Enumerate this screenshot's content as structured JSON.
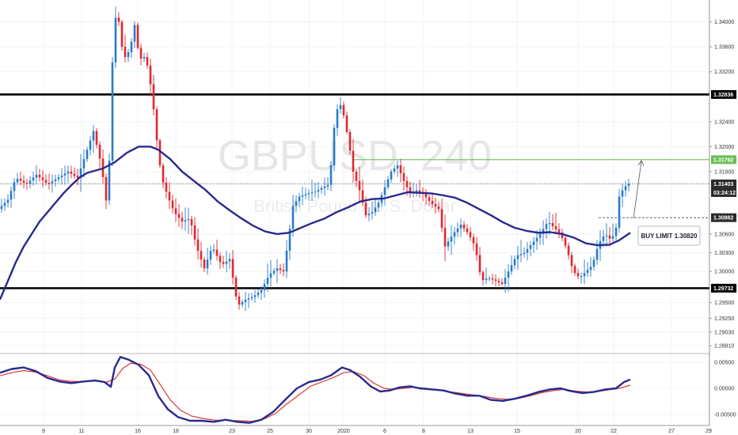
{
  "chart_data": {
    "type": "candlestick",
    "symbol": "GBPUSD",
    "interval": "240",
    "description": "British Pound / U.S. Dollar",
    "x_ticks": [
      "9",
      "11",
      "16",
      "18",
      "23",
      "25",
      "30",
      "2020",
      "6",
      "8",
      "13",
      "15",
      "20",
      "22",
      "27",
      "29"
    ],
    "y_ticks": [
      "1.34000",
      "1.33600",
      "1.33200",
      "1.32400",
      "1.32000",
      "1.31600",
      "1.30600",
      "1.30300",
      "1.30000",
      "1.29500",
      "1.29250",
      "1.29030",
      "1.28810"
    ],
    "y_range": [
      1.2871,
      1.3435
    ],
    "price_levels": [
      {
        "value": 1.32836,
        "label": "1.32836",
        "color": "#000000",
        "style": "solid"
      },
      {
        "value": 1.29732,
        "label": "1.29732",
        "color": "#000000",
        "style": "solid"
      },
      {
        "value": 1.31792,
        "label": "1.31792",
        "color": "#6cbf5a",
        "style": "solid"
      },
      {
        "value": 1.31403,
        "label": "1.31403",
        "color": "#555555",
        "style": "dotted"
      },
      {
        "value": 1.30862,
        "label": "1.30862",
        "color": "#555555",
        "style": "dashed"
      }
    ],
    "countdown": "03:24:12",
    "annotation": "BUY LIMIT 1.30820",
    "macd_ticks": [
      "0.00500",
      "0.00000",
      "-0.00500"
    ],
    "macd_range": [
      -0.0068,
      0.0062
    ],
    "ma_line": [
      [
        0,
        1.2955
      ],
      [
        10,
        1.2985
      ],
      [
        20,
        1.3015
      ],
      [
        30,
        1.304
      ],
      [
        40,
        1.306
      ],
      [
        50,
        1.308
      ],
      [
        60,
        1.3095
      ],
      [
        70,
        1.311
      ],
      [
        80,
        1.3125
      ],
      [
        90,
        1.3138
      ],
      [
        100,
        1.315
      ],
      [
        110,
        1.3158
      ],
      [
        130,
        1.3165
      ],
      [
        145,
        1.3175
      ],
      [
        160,
        1.319
      ],
      [
        175,
        1.32
      ],
      [
        190,
        1.32
      ],
      [
        200,
        1.3195
      ],
      [
        215,
        1.318
      ],
      [
        230,
        1.316
      ],
      [
        245,
        1.3145
      ],
      [
        260,
        1.313
      ],
      [
        275,
        1.3112
      ],
      [
        290,
        1.3098
      ],
      [
        305,
        1.3085
      ],
      [
        320,
        1.3073
      ],
      [
        335,
        1.3064
      ],
      [
        350,
        1.306
      ],
      [
        365,
        1.3062
      ],
      [
        380,
        1.307
      ],
      [
        395,
        1.3078
      ],
      [
        410,
        1.3085
      ],
      [
        425,
        1.3095
      ],
      [
        440,
        1.3103
      ],
      [
        455,
        1.3112
      ],
      [
        470,
        1.3116
      ],
      [
        485,
        1.3117
      ],
      [
        500,
        1.3122
      ],
      [
        515,
        1.3127
      ],
      [
        530,
        1.3126
      ],
      [
        545,
        1.3125
      ],
      [
        560,
        1.3122
      ],
      [
        575,
        1.3118
      ],
      [
        590,
        1.311
      ],
      [
        605,
        1.31
      ],
      [
        620,
        1.309
      ],
      [
        635,
        1.3079
      ],
      [
        650,
        1.307
      ],
      [
        665,
        1.3065
      ],
      [
        680,
        1.3062
      ],
      [
        695,
        1.3063
      ],
      [
        710,
        1.306
      ],
      [
        725,
        1.3054
      ],
      [
        740,
        1.3045
      ],
      [
        755,
        1.3042
      ],
      [
        770,
        1.3043
      ],
      [
        782,
        1.305
      ],
      [
        796,
        1.3062
      ]
    ],
    "macd_line": [
      [
        0,
        0.003
      ],
      [
        15,
        0.0037
      ],
      [
        30,
        0.004
      ],
      [
        45,
        0.0033
      ],
      [
        60,
        0.002
      ],
      [
        75,
        0.0013
      ],
      [
        90,
        0.001
      ],
      [
        105,
        0.0013
      ],
      [
        120,
        0.0015
      ],
      [
        132,
        0.0012
      ],
      [
        140,
        0.0003
      ],
      [
        145,
        0.004
      ],
      [
        152,
        0.006
      ],
      [
        162,
        0.0055
      ],
      [
        175,
        0.0045
      ],
      [
        188,
        0.0025
      ],
      [
        200,
        -0.0015
      ],
      [
        212,
        -0.004
      ],
      [
        225,
        -0.0055
      ],
      [
        240,
        -0.0062
      ],
      [
        255,
        -0.0062
      ],
      [
        270,
        -0.0064
      ],
      [
        285,
        -0.006
      ],
      [
        300,
        -0.0064
      ],
      [
        315,
        -0.0066
      ],
      [
        330,
        -0.006
      ],
      [
        345,
        -0.0045
      ],
      [
        360,
        -0.0022
      ],
      [
        375,
        0.0
      ],
      [
        390,
        0.0012
      ],
      [
        405,
        0.0017
      ],
      [
        418,
        0.0025
      ],
      [
        432,
        0.004
      ],
      [
        442,
        0.0035
      ],
      [
        455,
        0.0022
      ],
      [
        468,
        0.0004
      ],
      [
        480,
        -0.0006
      ],
      [
        492,
        -0.0004
      ],
      [
        505,
        0.0002
      ],
      [
        518,
        0.0004
      ],
      [
        530,
        0.0
      ],
      [
        545,
        -0.0002
      ],
      [
        560,
        -0.0004
      ],
      [
        575,
        -0.001
      ],
      [
        590,
        -0.0014
      ],
      [
        605,
        -0.0014
      ],
      [
        620,
        -0.0022
      ],
      [
        635,
        -0.0024
      ],
      [
        650,
        -0.002
      ],
      [
        665,
        -0.0014
      ],
      [
        680,
        -0.0007
      ],
      [
        695,
        -0.0002
      ],
      [
        708,
        0.0
      ],
      [
        720,
        -0.0005
      ],
      [
        735,
        -0.0009
      ],
      [
        750,
        -0.0007
      ],
      [
        765,
        -0.0002
      ],
      [
        778,
        0.0
      ],
      [
        788,
        0.0012
      ],
      [
        796,
        0.0017
      ]
    ],
    "signal_line": [
      [
        0,
        0.0024
      ],
      [
        15,
        0.003
      ],
      [
        30,
        0.0034
      ],
      [
        45,
        0.0031
      ],
      [
        60,
        0.0024
      ],
      [
        75,
        0.0016
      ],
      [
        90,
        0.0013
      ],
      [
        105,
        0.0013
      ],
      [
        120,
        0.0014
      ],
      [
        135,
        0.0012
      ],
      [
        145,
        0.0018
      ],
      [
        155,
        0.0038
      ],
      [
        165,
        0.0048
      ],
      [
        178,
        0.0046
      ],
      [
        190,
        0.0035
      ],
      [
        202,
        0.0008
      ],
      [
        215,
        -0.0022
      ],
      [
        228,
        -0.0042
      ],
      [
        242,
        -0.0053
      ],
      [
        258,
        -0.0058
      ],
      [
        272,
        -0.0061
      ],
      [
        287,
        -0.0061
      ],
      [
        302,
        -0.0062
      ],
      [
        318,
        -0.0063
      ],
      [
        333,
        -0.0059
      ],
      [
        348,
        -0.0048
      ],
      [
        362,
        -0.003
      ],
      [
        378,
        -0.0012
      ],
      [
        392,
        0.0004
      ],
      [
        406,
        0.0012
      ],
      [
        420,
        0.002
      ],
      [
        434,
        0.003
      ],
      [
        446,
        0.0032
      ],
      [
        460,
        0.0024
      ],
      [
        472,
        0.001
      ],
      [
        485,
        0.0
      ],
      [
        497,
        -0.0002
      ],
      [
        510,
        0.0
      ],
      [
        523,
        0.0002
      ],
      [
        538,
        0.0
      ],
      [
        552,
        -0.0003
      ],
      [
        566,
        -0.0006
      ],
      [
        580,
        -0.0009
      ],
      [
        595,
        -0.0012
      ],
      [
        610,
        -0.0015
      ],
      [
        625,
        -0.0019
      ],
      [
        640,
        -0.0021
      ],
      [
        655,
        -0.0019
      ],
      [
        670,
        -0.0014
      ],
      [
        685,
        -0.0008
      ],
      [
        700,
        -0.0004
      ],
      [
        713,
        -0.0002
      ],
      [
        726,
        -0.0005
      ],
      [
        740,
        -0.0007
      ],
      [
        754,
        -0.0006
      ],
      [
        768,
        -0.0003
      ],
      [
        782,
        0.0
      ],
      [
        796,
        0.0006
      ]
    ],
    "candle_path": [
      [
        0,
        1.31
      ],
      [
        12,
        1.3115
      ],
      [
        22,
        1.315
      ],
      [
        35,
        1.314
      ],
      [
        48,
        1.3155
      ],
      [
        62,
        1.314
      ],
      [
        75,
        1.315
      ],
      [
        88,
        1.316
      ],
      [
        100,
        1.315
      ],
      [
        112,
        1.3195
      ],
      [
        120,
        1.3225
      ],
      [
        130,
        1.317
      ],
      [
        138,
        1.3095
      ],
      [
        142,
        1.326
      ],
      [
        146,
        1.341
      ],
      [
        152,
        1.34
      ],
      [
        158,
        1.334
      ],
      [
        166,
        1.3355
      ],
      [
        172,
        1.3395
      ],
      [
        178,
        1.334
      ],
      [
        186,
        1.3345
      ],
      [
        194,
        1.3285
      ],
      [
        200,
        1.321
      ],
      [
        206,
        1.315
      ],
      [
        214,
        1.312
      ],
      [
        222,
        1.3095
      ],
      [
        232,
        1.308
      ],
      [
        242,
        1.3085
      ],
      [
        250,
        1.304
      ],
      [
        260,
        1.3005
      ],
      [
        270,
        1.304
      ],
      [
        282,
        1.301
      ],
      [
        292,
        1.302
      ],
      [
        302,
        1.2945
      ],
      [
        312,
        1.2955
      ],
      [
        322,
        1.296
      ],
      [
        332,
        1.297
      ],
      [
        342,
        1.2995
      ],
      [
        352,
        1.3005
      ],
      [
        360,
        1.3
      ],
      [
        366,
        1.305
      ],
      [
        372,
        1.3105
      ],
      [
        380,
        1.312
      ],
      [
        390,
        1.3125
      ],
      [
        400,
        1.3128
      ],
      [
        410,
        1.3135
      ],
      [
        418,
        1.314
      ],
      [
        424,
        1.323
      ],
      [
        430,
        1.3275
      ],
      [
        436,
        1.325
      ],
      [
        442,
        1.321
      ],
      [
        448,
        1.316
      ],
      [
        456,
        1.313
      ],
      [
        464,
        1.309
      ],
      [
        472,
        1.3095
      ],
      [
        480,
        1.311
      ],
      [
        488,
        1.3135
      ],
      [
        496,
        1.316
      ],
      [
        504,
        1.317
      ],
      [
        512,
        1.3145
      ],
      [
        520,
        1.3125
      ],
      [
        528,
        1.313
      ],
      [
        536,
        1.3125
      ],
      [
        546,
        1.311
      ],
      [
        556,
        1.31
      ],
      [
        564,
        1.304
      ],
      [
        574,
        1.306
      ],
      [
        584,
        1.3075
      ],
      [
        594,
        1.306
      ],
      [
        602,
        1.304
      ],
      [
        610,
        1.2985
      ],
      [
        618,
        1.299
      ],
      [
        628,
        1.2985
      ],
      [
        636,
        1.298
      ],
      [
        644,
        1.3
      ],
      [
        654,
        1.3025
      ],
      [
        664,
        1.303
      ],
      [
        674,
        1.3045
      ],
      [
        684,
        1.306
      ],
      [
        694,
        1.308
      ],
      [
        702,
        1.307
      ],
      [
        710,
        1.306
      ],
      [
        718,
        1.3035
      ],
      [
        726,
        1.3
      ],
      [
        734,
        1.299
      ],
      [
        742,
        1.3
      ],
      [
        750,
        1.301
      ],
      [
        758,
        1.3045
      ],
      [
        766,
        1.306
      ],
      [
        774,
        1.305
      ],
      [
        780,
        1.307
      ],
      [
        784,
        1.312
      ],
      [
        790,
        1.3135
      ],
      [
        796,
        1.314
      ]
    ]
  }
}
